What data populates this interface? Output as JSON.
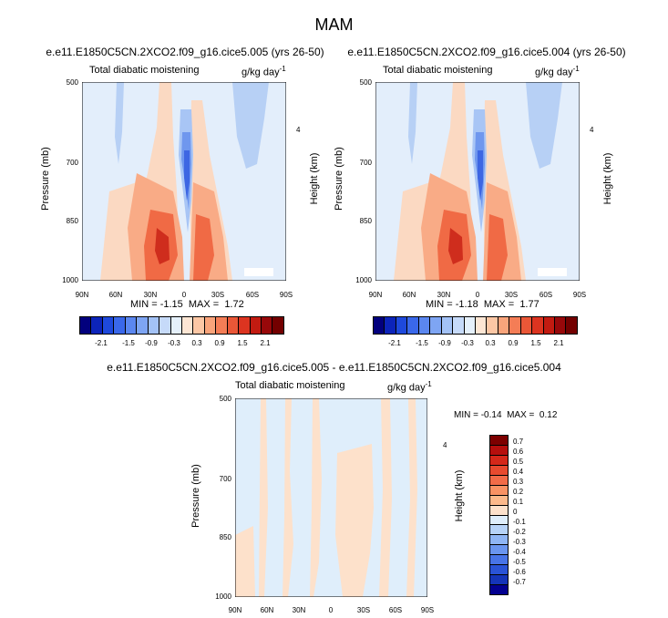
{
  "figure": {
    "season": "MAM",
    "panels": [
      {
        "run_title": "e.e11.E1850C5CN.2XCO2.f09_g16.cice5.005 (yrs 26-50)",
        "left_label": "Total diabatic moistening",
        "right_label": "g/kg day",
        "right_label_exp": "-1",
        "minmax_text": "MIN = -1.15  MAX =  1.72"
      },
      {
        "run_title": "e.e11.E1850C5CN.2XCO2.f09_g16.cice5.004 (yrs 26-50)",
        "left_label": "Total diabatic moistening",
        "right_label": "g/kg day",
        "right_label_exp": "-1",
        "minmax_text": "MIN = -1.18  MAX =  1.77"
      },
      {
        "run_title": "e.e11.E1850C5CN.2XCO2.f09_g16.cice5.005 - e.e11.E1850C5CN.2XCO2.f09_g16.cice5.004",
        "left_label": "Total diabatic moistening",
        "right_label": "g/kg day",
        "right_label_exp": "-1",
        "minmax_text": "MIN = -0.14  MAX =  0.12"
      }
    ]
  },
  "chart_data": [
    {
      "type": "heatmap",
      "title": "e.e11.E1850C5CN.2XCO2.f09_g16.cice5.005 (yrs 26-50)",
      "variable": "Total diabatic moistening",
      "units": "g/kg day-1",
      "xlabel": "",
      "ylabel": "Pressure (mb)",
      "y2label": "Height (km)",
      "x_ticks": [
        "90N",
        "60N",
        "30N",
        "0",
        "30S",
        "60S",
        "90S"
      ],
      "y_ticks": [
        "500",
        "700",
        "850",
        "1000"
      ],
      "y2_ticks": [
        "4"
      ],
      "xlim": [
        90,
        -90
      ],
      "ylim": [
        1000,
        500
      ],
      "min": -1.15,
      "max": 1.72
    },
    {
      "type": "heatmap",
      "title": "e.e11.E1850C5CN.2XCO2.f09_g16.cice5.004 (yrs 26-50)",
      "variable": "Total diabatic moistening",
      "units": "g/kg day-1",
      "xlabel": "",
      "ylabel": "Pressure (mb)",
      "y2label": "Height (km)",
      "x_ticks": [
        "90N",
        "60N",
        "30N",
        "0",
        "30S",
        "60S",
        "90S"
      ],
      "y_ticks": [
        "500",
        "700",
        "850",
        "1000"
      ],
      "y2_ticks": [
        "4"
      ],
      "xlim": [
        90,
        -90
      ],
      "ylim": [
        1000,
        500
      ],
      "min": -1.18,
      "max": 1.77
    },
    {
      "type": "heatmap",
      "title": "e.e11.E1850C5CN.2XCO2.f09_g16.cice5.005 - e.e11.E1850C5CN.2XCO2.f09_g16.cice5.004",
      "variable": "Total diabatic moistening",
      "units": "g/kg day-1",
      "xlabel": "",
      "ylabel": "Pressure (mb)",
      "y2label": "Height (km)",
      "x_ticks": [
        "90N",
        "60N",
        "30N",
        "0",
        "30S",
        "60S",
        "90S"
      ],
      "y_ticks": [
        "500",
        "700",
        "850",
        "1000"
      ],
      "y2_ticks": [
        "4"
      ],
      "xlim": [
        90,
        -90
      ],
      "ylim": [
        1000,
        500
      ],
      "min": -0.14,
      "max": 0.12
    }
  ],
  "colorbars": {
    "main": {
      "labels": [
        "-2.1",
        "-1.5",
        "-0.9",
        "-0.3",
        "0.3",
        "0.9",
        "1.5",
        "2.1"
      ],
      "colors": [
        "#02007d",
        "#0c24ba",
        "#1e49dc",
        "#3a68ea",
        "#5b87f0",
        "#7ea5f3",
        "#a3c2f6",
        "#c6daf9",
        "#e5f0fb",
        "#fde6d4",
        "#fcc7a5",
        "#f9a47b",
        "#f47d56",
        "#ea5737",
        "#dc3420",
        "#c21b11",
        "#98080a",
        "#730000"
      ]
    },
    "diff": {
      "labels": [
        "0.7",
        "0.6",
        "0.5",
        "0.4",
        "0.3",
        "0.2",
        "0.1",
        "0",
        "-0.1",
        "-0.2",
        "-0.3",
        "-0.4",
        "-0.5",
        "-0.6",
        "-0.7"
      ],
      "colors": [
        "#7d0000",
        "#b60f0d",
        "#d5281a",
        "#e84a2f",
        "#f26b48",
        "#f99264",
        "#fcb98b",
        "#fde1cb",
        "#dfeefb",
        "#b7d3f7",
        "#8fb5f4",
        "#6a95ef",
        "#4874e7",
        "#2a53d6",
        "#1534b8",
        "#030090"
      ]
    }
  }
}
